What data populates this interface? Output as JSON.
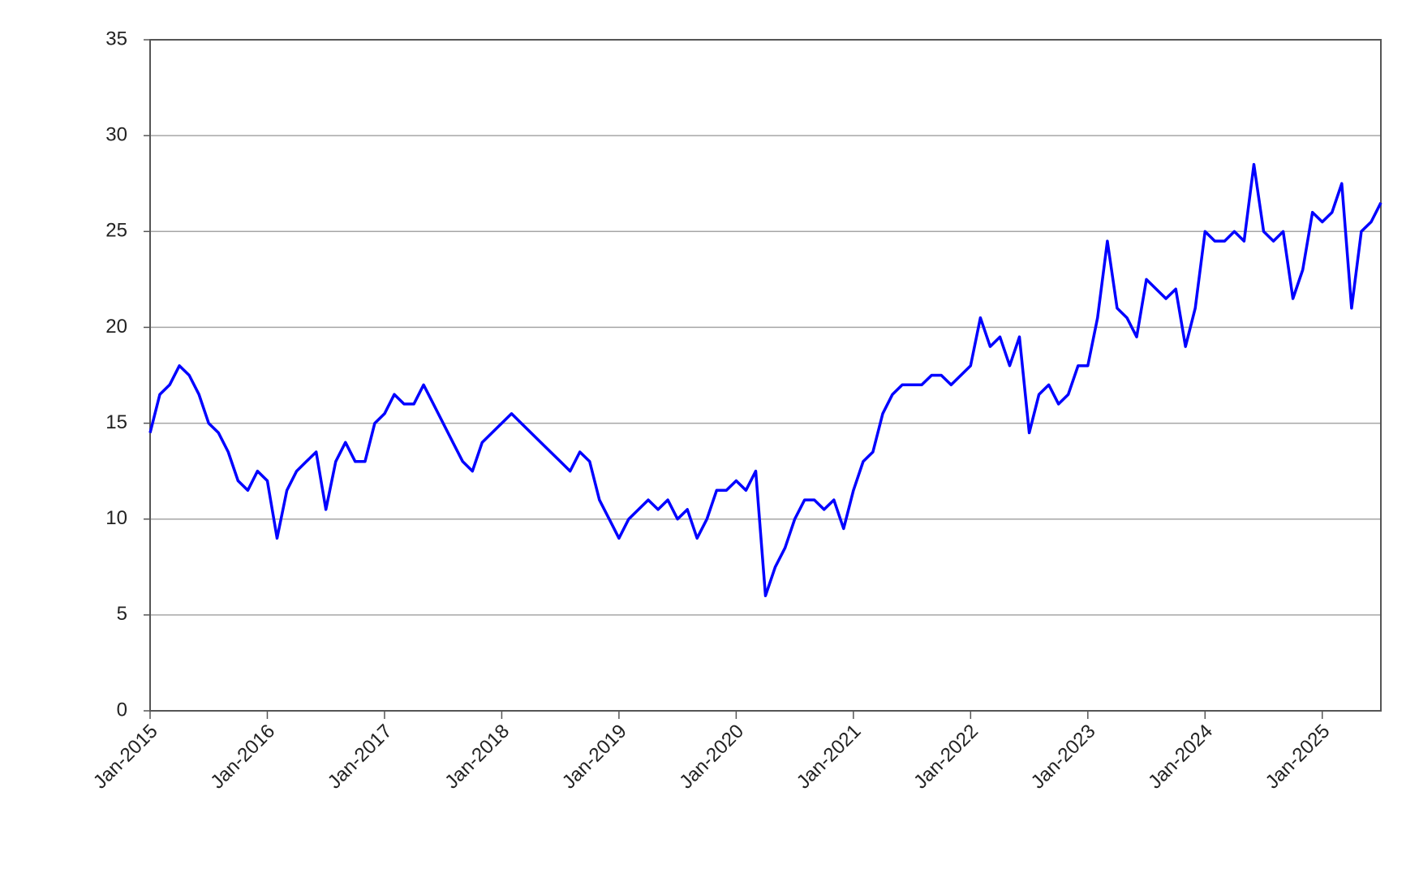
{
  "chart_data": {
    "type": "line",
    "x": [
      "2015-01",
      "2015-02",
      "2015-03",
      "2015-04",
      "2015-05",
      "2015-06",
      "2015-07",
      "2015-08",
      "2015-09",
      "2015-10",
      "2015-11",
      "2015-12",
      "2016-01",
      "2016-02",
      "2016-03",
      "2016-04",
      "2016-05",
      "2016-06",
      "2016-07",
      "2016-08",
      "2016-09",
      "2016-10",
      "2016-11",
      "2016-12",
      "2017-01",
      "2017-02",
      "2017-03",
      "2017-04",
      "2017-05",
      "2017-06",
      "2017-07",
      "2017-08",
      "2017-09",
      "2017-10",
      "2017-11",
      "2017-12",
      "2018-01",
      "2018-02",
      "2018-03",
      "2018-04",
      "2018-05",
      "2018-06",
      "2018-07",
      "2018-08",
      "2018-09",
      "2018-10",
      "2018-11",
      "2018-12",
      "2019-01",
      "2019-02",
      "2019-03",
      "2019-04",
      "2019-05",
      "2019-06",
      "2019-07",
      "2019-08",
      "2019-09",
      "2019-10",
      "2019-11",
      "2019-12",
      "2020-01",
      "2020-02",
      "2020-03",
      "2020-04",
      "2020-05",
      "2020-06",
      "2020-07",
      "2020-08",
      "2020-09",
      "2020-10",
      "2020-11",
      "2020-12",
      "2021-01",
      "2021-02",
      "2021-03",
      "2021-04",
      "2021-05",
      "2021-06",
      "2021-07",
      "2021-08",
      "2021-09",
      "2021-10",
      "2021-11",
      "2021-12",
      "2022-01",
      "2022-02",
      "2022-03",
      "2022-04",
      "2022-05",
      "2022-06",
      "2022-07",
      "2022-08",
      "2022-09",
      "2022-10",
      "2022-11",
      "2022-12",
      "2023-01",
      "2023-02",
      "2023-03",
      "2023-04",
      "2023-05",
      "2023-06",
      "2023-07",
      "2023-08",
      "2023-09",
      "2023-10",
      "2023-11",
      "2023-12",
      "2024-01",
      "2024-02",
      "2024-03",
      "2024-04",
      "2024-05",
      "2024-06",
      "2024-07",
      "2024-08",
      "2024-09",
      "2024-10",
      "2024-11",
      "2024-12",
      "2025-01",
      "2025-02",
      "2025-03",
      "2025-04",
      "2025-05",
      "2025-06",
      "2025-07"
    ],
    "series": [
      {
        "color": "#0000ff",
        "values": [
          14.5,
          16.5,
          17,
          18,
          17.5,
          16.5,
          15,
          14.5,
          13.5,
          12,
          11.5,
          12.5,
          12,
          9,
          11.5,
          12.5,
          13,
          13.5,
          10.5,
          13,
          14,
          13,
          13,
          15,
          15.5,
          16.5,
          16,
          16,
          17,
          16,
          15,
          14,
          13,
          12.5,
          14,
          14.5,
          15,
          15.5,
          15,
          14.5,
          14,
          13.5,
          13,
          12.5,
          13.5,
          13,
          11,
          10,
          9,
          10,
          10.5,
          11,
          10.5,
          11,
          10,
          10.5,
          9,
          10,
          11.5,
          11.5,
          12,
          11.5,
          12.5,
          6,
          7.5,
          8.5,
          10,
          11,
          11,
          10.5,
          11,
          9.5,
          11.5,
          13,
          13.5,
          15.5,
          16.5,
          17,
          17,
          17,
          17.5,
          17.5,
          17,
          17.5,
          18,
          20.5,
          19,
          19.5,
          18,
          19.5,
          14.5,
          16.5,
          17,
          16,
          16.5,
          18,
          18,
          20.5,
          24.5,
          21,
          20.5,
          19.5,
          22.5,
          22,
          21.5,
          22,
          19,
          21,
          25,
          24.5,
          24.5,
          25,
          24.5,
          28.5,
          25,
          24.5,
          25,
          21.5,
          23,
          26,
          25.5,
          26,
          27.5,
          21,
          25,
          25.5,
          26.5
        ]
      }
    ],
    "xlim": [
      "2015-01",
      "2025-07"
    ],
    "xticks": [
      {
        "value": "2015-01",
        "label": "Jan-2015"
      },
      {
        "value": "2016-01",
        "label": "Jan-2016"
      },
      {
        "value": "2017-01",
        "label": "Jan-2017"
      },
      {
        "value": "2018-01",
        "label": "Jan-2018"
      },
      {
        "value": "2019-01",
        "label": "Jan-2019"
      },
      {
        "value": "2020-01",
        "label": "Jan-2020"
      },
      {
        "value": "2021-01",
        "label": "Jan-2021"
      },
      {
        "value": "2022-01",
        "label": "Jan-2022"
      },
      {
        "value": "2023-01",
        "label": "Jan-2023"
      },
      {
        "value": "2024-01",
        "label": "Jan-2024"
      },
      {
        "value": "2025-01",
        "label": "Jan-2025"
      }
    ],
    "ylim": [
      0,
      35
    ],
    "yticks": [
      0,
      5,
      10,
      15,
      20,
      25,
      30,
      35
    ],
    "grid": true
  }
}
